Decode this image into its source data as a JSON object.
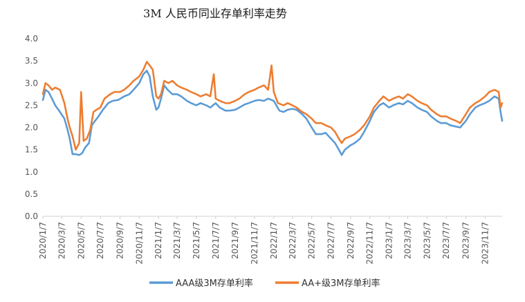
{
  "chart_data": {
    "type": "line",
    "title": "3M 人民币同业存单利率走势",
    "xlabel": "",
    "ylabel": "",
    "ylim": [
      0,
      4
    ],
    "yticks": [
      "0.0",
      "0.5",
      "1.0",
      "1.5",
      "2.0",
      "2.5",
      "3.0",
      "3.5",
      "4.0"
    ],
    "x_start": "2020-01-07",
    "x_end": "2023-12-31",
    "xticks": [
      "2020/1/7",
      "2020/3/7",
      "2020/5/7",
      "2020/7/7",
      "2020/9/7",
      "2020/11/7",
      "2021/1/7",
      "2021/3/7",
      "2021/5/7",
      "2021/7/7",
      "2021/9/7",
      "2021/11/7",
      "2022/1/7",
      "2022/3/7",
      "2022/5/7",
      "2022/7/7",
      "2022/9/7",
      "2022/11/7",
      "2023/1/7",
      "2023/3/7",
      "2023/5/7",
      "2023/7/7",
      "2023/9/7",
      "2023/11/7"
    ],
    "grid": false,
    "legend_position": "bottom",
    "series": [
      {
        "name": "AAA级3M存单利率",
        "color": "#5B9BD5",
        "points": [
          [
            "2020-01-07",
            2.62
          ],
          [
            "2020-01-15",
            2.85
          ],
          [
            "2020-01-25",
            2.8
          ],
          [
            "2020-02-05",
            2.65
          ],
          [
            "2020-02-15",
            2.5
          ],
          [
            "2020-03-01",
            2.35
          ],
          [
            "2020-03-15",
            2.2
          ],
          [
            "2020-03-25",
            1.95
          ],
          [
            "2020-04-01",
            1.75
          ],
          [
            "2020-04-10",
            1.4
          ],
          [
            "2020-04-20",
            1.4
          ],
          [
            "2020-05-01",
            1.38
          ],
          [
            "2020-05-10",
            1.42
          ],
          [
            "2020-05-20",
            1.55
          ],
          [
            "2020-06-01",
            1.65
          ],
          [
            "2020-06-10",
            2.05
          ],
          [
            "2020-06-20",
            2.15
          ],
          [
            "2020-07-01",
            2.25
          ],
          [
            "2020-07-15",
            2.4
          ],
          [
            "2020-08-01",
            2.55
          ],
          [
            "2020-08-15",
            2.6
          ],
          [
            "2020-09-01",
            2.62
          ],
          [
            "2020-09-20",
            2.7
          ],
          [
            "2020-10-07",
            2.75
          ],
          [
            "2020-10-20",
            2.85
          ],
          [
            "2020-11-07",
            3.0
          ],
          [
            "2020-11-20",
            3.2
          ],
          [
            "2020-12-01",
            3.28
          ],
          [
            "2020-12-10",
            3.15
          ],
          [
            "2020-12-20",
            2.7
          ],
          [
            "2020-12-31",
            2.4
          ],
          [
            "2021-01-07",
            2.45
          ],
          [
            "2021-01-15",
            2.65
          ],
          [
            "2021-01-25",
            2.95
          ],
          [
            "2021-02-05",
            2.85
          ],
          [
            "2021-02-20",
            2.75
          ],
          [
            "2021-03-07",
            2.75
          ],
          [
            "2021-03-20",
            2.7
          ],
          [
            "2021-04-07",
            2.6
          ],
          [
            "2021-04-20",
            2.55
          ],
          [
            "2021-05-07",
            2.5
          ],
          [
            "2021-05-20",
            2.55
          ],
          [
            "2021-06-07",
            2.5
          ],
          [
            "2021-06-20",
            2.45
          ],
          [
            "2021-07-07",
            2.55
          ],
          [
            "2021-07-20",
            2.45
          ],
          [
            "2021-08-07",
            2.38
          ],
          [
            "2021-08-20",
            2.38
          ],
          [
            "2021-09-07",
            2.4
          ],
          [
            "2021-09-20",
            2.45
          ],
          [
            "2021-10-07",
            2.52
          ],
          [
            "2021-10-20",
            2.55
          ],
          [
            "2021-11-07",
            2.6
          ],
          [
            "2021-11-20",
            2.62
          ],
          [
            "2021-12-07",
            2.6
          ],
          [
            "2021-12-20",
            2.65
          ],
          [
            "2022-01-07",
            2.6
          ],
          [
            "2022-01-15",
            2.5
          ],
          [
            "2022-01-25",
            2.38
          ],
          [
            "2022-02-07",
            2.35
          ],
          [
            "2022-02-20",
            2.4
          ],
          [
            "2022-03-07",
            2.42
          ],
          [
            "2022-03-20",
            2.4
          ],
          [
            "2022-04-07",
            2.3
          ],
          [
            "2022-04-20",
            2.2
          ],
          [
            "2022-05-07",
            2.0
          ],
          [
            "2022-05-20",
            1.85
          ],
          [
            "2022-06-07",
            1.85
          ],
          [
            "2022-06-20",
            1.88
          ],
          [
            "2022-07-07",
            1.75
          ],
          [
            "2022-07-20",
            1.65
          ],
          [
            "2022-08-01",
            1.5
          ],
          [
            "2022-08-10",
            1.38
          ],
          [
            "2022-08-20",
            1.5
          ],
          [
            "2022-09-07",
            1.6
          ],
          [
            "2022-09-20",
            1.65
          ],
          [
            "2022-10-07",
            1.75
          ],
          [
            "2022-10-20",
            1.9
          ],
          [
            "2022-11-07",
            2.15
          ],
          [
            "2022-11-20",
            2.35
          ],
          [
            "2022-12-07",
            2.5
          ],
          [
            "2022-12-20",
            2.55
          ],
          [
            "2023-01-07",
            2.45
          ],
          [
            "2023-01-20",
            2.5
          ],
          [
            "2023-02-07",
            2.55
          ],
          [
            "2023-02-20",
            2.52
          ],
          [
            "2023-03-07",
            2.6
          ],
          [
            "2023-03-20",
            2.55
          ],
          [
            "2023-04-07",
            2.45
          ],
          [
            "2023-04-20",
            2.4
          ],
          [
            "2023-05-07",
            2.35
          ],
          [
            "2023-05-20",
            2.25
          ],
          [
            "2023-06-07",
            2.15
          ],
          [
            "2023-06-20",
            2.1
          ],
          [
            "2023-07-07",
            2.1
          ],
          [
            "2023-07-20",
            2.05
          ],
          [
            "2023-08-07",
            2.02
          ],
          [
            "2023-08-20",
            2.0
          ],
          [
            "2023-09-07",
            2.15
          ],
          [
            "2023-09-20",
            2.3
          ],
          [
            "2023-10-07",
            2.45
          ],
          [
            "2023-10-20",
            2.5
          ],
          [
            "2023-11-07",
            2.55
          ],
          [
            "2023-11-20",
            2.6
          ],
          [
            "2023-12-07",
            2.7
          ],
          [
            "2023-12-20",
            2.65
          ],
          [
            "2023-12-26",
            2.35
          ],
          [
            "2023-12-31",
            2.15
          ]
        ]
      },
      {
        "name": "AA+级3M存单利率",
        "color": "#ED7D31",
        "points": [
          [
            "2020-01-07",
            2.75
          ],
          [
            "2020-01-15",
            3.0
          ],
          [
            "2020-01-25",
            2.95
          ],
          [
            "2020-02-05",
            2.85
          ],
          [
            "2020-02-15",
            2.9
          ],
          [
            "2020-03-01",
            2.85
          ],
          [
            "2020-03-15",
            2.55
          ],
          [
            "2020-03-25",
            2.2
          ],
          [
            "2020-04-01",
            2.0
          ],
          [
            "2020-04-10",
            1.8
          ],
          [
            "2020-04-20",
            1.5
          ],
          [
            "2020-05-01",
            1.65
          ],
          [
            "2020-05-07",
            2.8
          ],
          [
            "2020-05-15",
            1.7
          ],
          [
            "2020-05-25",
            1.75
          ],
          [
            "2020-06-05",
            1.95
          ],
          [
            "2020-06-15",
            2.35
          ],
          [
            "2020-06-25",
            2.4
          ],
          [
            "2020-07-07",
            2.45
          ],
          [
            "2020-07-20",
            2.65
          ],
          [
            "2020-08-07",
            2.75
          ],
          [
            "2020-08-20",
            2.8
          ],
          [
            "2020-09-07",
            2.8
          ],
          [
            "2020-09-20",
            2.85
          ],
          [
            "2020-10-07",
            2.95
          ],
          [
            "2020-10-20",
            3.05
          ],
          [
            "2020-11-07",
            3.15
          ],
          [
            "2020-11-20",
            3.3
          ],
          [
            "2020-12-01",
            3.48
          ],
          [
            "2020-12-10",
            3.4
          ],
          [
            "2020-12-20",
            3.3
          ],
          [
            "2020-12-31",
            2.7
          ],
          [
            "2021-01-07",
            2.65
          ],
          [
            "2021-01-15",
            2.75
          ],
          [
            "2021-01-25",
            3.05
          ],
          [
            "2021-02-07",
            3.0
          ],
          [
            "2021-02-20",
            3.05
          ],
          [
            "2021-03-07",
            2.95
          ],
          [
            "2021-03-20",
            2.9
          ],
          [
            "2021-04-07",
            2.85
          ],
          [
            "2021-04-20",
            2.8
          ],
          [
            "2021-05-07",
            2.75
          ],
          [
            "2021-05-20",
            2.7
          ],
          [
            "2021-06-07",
            2.75
          ],
          [
            "2021-06-20",
            2.7
          ],
          [
            "2021-07-01",
            3.2
          ],
          [
            "2021-07-07",
            2.65
          ],
          [
            "2021-07-20",
            2.6
          ],
          [
            "2021-08-07",
            2.55
          ],
          [
            "2021-08-20",
            2.55
          ],
          [
            "2021-09-07",
            2.6
          ],
          [
            "2021-09-20",
            2.65
          ],
          [
            "2021-10-07",
            2.75
          ],
          [
            "2021-10-20",
            2.8
          ],
          [
            "2021-11-07",
            2.85
          ],
          [
            "2021-11-20",
            2.9
          ],
          [
            "2021-12-07",
            2.95
          ],
          [
            "2021-12-20",
            2.85
          ],
          [
            "2021-12-31",
            3.4
          ],
          [
            "2022-01-07",
            2.8
          ],
          [
            "2022-01-20",
            2.55
          ],
          [
            "2022-02-07",
            2.5
          ],
          [
            "2022-02-20",
            2.55
          ],
          [
            "2022-03-07",
            2.5
          ],
          [
            "2022-03-20",
            2.45
          ],
          [
            "2022-04-07",
            2.35
          ],
          [
            "2022-04-20",
            2.3
          ],
          [
            "2022-05-07",
            2.2
          ],
          [
            "2022-05-20",
            2.1
          ],
          [
            "2022-06-07",
            2.1
          ],
          [
            "2022-06-20",
            2.05
          ],
          [
            "2022-07-07",
            2.0
          ],
          [
            "2022-07-20",
            1.9
          ],
          [
            "2022-08-01",
            1.75
          ],
          [
            "2022-08-10",
            1.65
          ],
          [
            "2022-08-20",
            1.75
          ],
          [
            "2022-09-07",
            1.8
          ],
          [
            "2022-09-20",
            1.85
          ],
          [
            "2022-10-07",
            1.95
          ],
          [
            "2022-10-20",
            2.05
          ],
          [
            "2022-11-07",
            2.25
          ],
          [
            "2022-11-20",
            2.45
          ],
          [
            "2022-12-07",
            2.6
          ],
          [
            "2022-12-20",
            2.7
          ],
          [
            "2023-01-07",
            2.6
          ],
          [
            "2023-01-20",
            2.65
          ],
          [
            "2023-02-07",
            2.7
          ],
          [
            "2023-02-20",
            2.65
          ],
          [
            "2023-03-07",
            2.75
          ],
          [
            "2023-03-20",
            2.7
          ],
          [
            "2023-04-07",
            2.6
          ],
          [
            "2023-04-20",
            2.55
          ],
          [
            "2023-05-07",
            2.5
          ],
          [
            "2023-05-20",
            2.4
          ],
          [
            "2023-06-07",
            2.3
          ],
          [
            "2023-06-20",
            2.25
          ],
          [
            "2023-07-07",
            2.25
          ],
          [
            "2023-07-20",
            2.2
          ],
          [
            "2023-08-07",
            2.15
          ],
          [
            "2023-08-20",
            2.1
          ],
          [
            "2023-09-07",
            2.3
          ],
          [
            "2023-09-20",
            2.45
          ],
          [
            "2023-10-07",
            2.55
          ],
          [
            "2023-10-20",
            2.6
          ],
          [
            "2023-11-07",
            2.7
          ],
          [
            "2023-11-20",
            2.8
          ],
          [
            "2023-12-07",
            2.85
          ],
          [
            "2023-12-20",
            2.8
          ],
          [
            "2023-12-26",
            2.45
          ],
          [
            "2023-12-31",
            2.55
          ]
        ]
      }
    ]
  }
}
